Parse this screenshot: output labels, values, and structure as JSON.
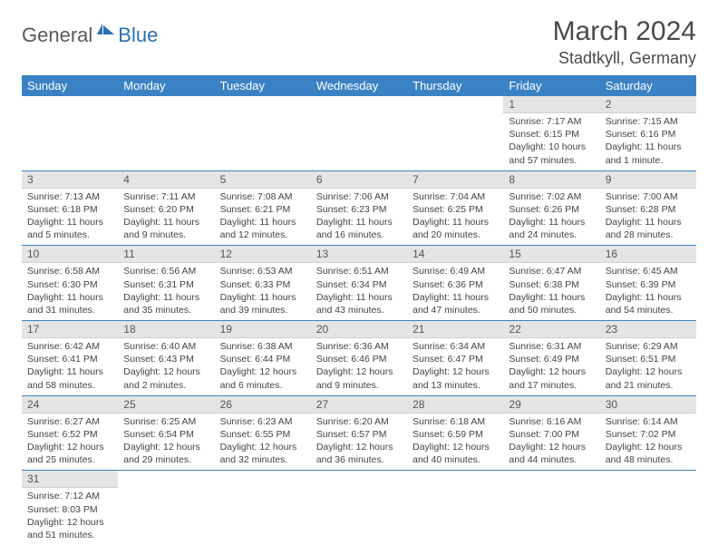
{
  "logo": {
    "general": "General",
    "blue": "Blue"
  },
  "title": "March 2024",
  "location": "Stadtkyll, Germany",
  "colors": {
    "header_bg": "#3b82c4",
    "header_text": "#ffffff",
    "daynum_bg": "#e5e5e5",
    "row_divider": "#3b82c4",
    "logo_general": "#5a5a5a",
    "logo_blue": "#2a6fb5"
  },
  "day_headers": [
    "Sunday",
    "Monday",
    "Tuesday",
    "Wednesday",
    "Thursday",
    "Friday",
    "Saturday"
  ],
  "weeks": [
    [
      {
        "n": "",
        "sr": "",
        "ss": "",
        "dl1": "",
        "dl2": "",
        "empty": true
      },
      {
        "n": "",
        "sr": "",
        "ss": "",
        "dl1": "",
        "dl2": "",
        "empty": true
      },
      {
        "n": "",
        "sr": "",
        "ss": "",
        "dl1": "",
        "dl2": "",
        "empty": true
      },
      {
        "n": "",
        "sr": "",
        "ss": "",
        "dl1": "",
        "dl2": "",
        "empty": true
      },
      {
        "n": "",
        "sr": "",
        "ss": "",
        "dl1": "",
        "dl2": "",
        "empty": true
      },
      {
        "n": "1",
        "sr": "Sunrise: 7:17 AM",
        "ss": "Sunset: 6:15 PM",
        "dl1": "Daylight: 10 hours",
        "dl2": "and 57 minutes."
      },
      {
        "n": "2",
        "sr": "Sunrise: 7:15 AM",
        "ss": "Sunset: 6:16 PM",
        "dl1": "Daylight: 11 hours",
        "dl2": "and 1 minute."
      }
    ],
    [
      {
        "n": "3",
        "sr": "Sunrise: 7:13 AM",
        "ss": "Sunset: 6:18 PM",
        "dl1": "Daylight: 11 hours",
        "dl2": "and 5 minutes."
      },
      {
        "n": "4",
        "sr": "Sunrise: 7:11 AM",
        "ss": "Sunset: 6:20 PM",
        "dl1": "Daylight: 11 hours",
        "dl2": "and 9 minutes."
      },
      {
        "n": "5",
        "sr": "Sunrise: 7:08 AM",
        "ss": "Sunset: 6:21 PM",
        "dl1": "Daylight: 11 hours",
        "dl2": "and 12 minutes."
      },
      {
        "n": "6",
        "sr": "Sunrise: 7:06 AM",
        "ss": "Sunset: 6:23 PM",
        "dl1": "Daylight: 11 hours",
        "dl2": "and 16 minutes."
      },
      {
        "n": "7",
        "sr": "Sunrise: 7:04 AM",
        "ss": "Sunset: 6:25 PM",
        "dl1": "Daylight: 11 hours",
        "dl2": "and 20 minutes."
      },
      {
        "n": "8",
        "sr": "Sunrise: 7:02 AM",
        "ss": "Sunset: 6:26 PM",
        "dl1": "Daylight: 11 hours",
        "dl2": "and 24 minutes."
      },
      {
        "n": "9",
        "sr": "Sunrise: 7:00 AM",
        "ss": "Sunset: 6:28 PM",
        "dl1": "Daylight: 11 hours",
        "dl2": "and 28 minutes."
      }
    ],
    [
      {
        "n": "10",
        "sr": "Sunrise: 6:58 AM",
        "ss": "Sunset: 6:30 PM",
        "dl1": "Daylight: 11 hours",
        "dl2": "and 31 minutes."
      },
      {
        "n": "11",
        "sr": "Sunrise: 6:56 AM",
        "ss": "Sunset: 6:31 PM",
        "dl1": "Daylight: 11 hours",
        "dl2": "and 35 minutes."
      },
      {
        "n": "12",
        "sr": "Sunrise: 6:53 AM",
        "ss": "Sunset: 6:33 PM",
        "dl1": "Daylight: 11 hours",
        "dl2": "and 39 minutes."
      },
      {
        "n": "13",
        "sr": "Sunrise: 6:51 AM",
        "ss": "Sunset: 6:34 PM",
        "dl1": "Daylight: 11 hours",
        "dl2": "and 43 minutes."
      },
      {
        "n": "14",
        "sr": "Sunrise: 6:49 AM",
        "ss": "Sunset: 6:36 PM",
        "dl1": "Daylight: 11 hours",
        "dl2": "and 47 minutes."
      },
      {
        "n": "15",
        "sr": "Sunrise: 6:47 AM",
        "ss": "Sunset: 6:38 PM",
        "dl1": "Daylight: 11 hours",
        "dl2": "and 50 minutes."
      },
      {
        "n": "16",
        "sr": "Sunrise: 6:45 AM",
        "ss": "Sunset: 6:39 PM",
        "dl1": "Daylight: 11 hours",
        "dl2": "and 54 minutes."
      }
    ],
    [
      {
        "n": "17",
        "sr": "Sunrise: 6:42 AM",
        "ss": "Sunset: 6:41 PM",
        "dl1": "Daylight: 11 hours",
        "dl2": "and 58 minutes."
      },
      {
        "n": "18",
        "sr": "Sunrise: 6:40 AM",
        "ss": "Sunset: 6:43 PM",
        "dl1": "Daylight: 12 hours",
        "dl2": "and 2 minutes."
      },
      {
        "n": "19",
        "sr": "Sunrise: 6:38 AM",
        "ss": "Sunset: 6:44 PM",
        "dl1": "Daylight: 12 hours",
        "dl2": "and 6 minutes."
      },
      {
        "n": "20",
        "sr": "Sunrise: 6:36 AM",
        "ss": "Sunset: 6:46 PM",
        "dl1": "Daylight: 12 hours",
        "dl2": "and 9 minutes."
      },
      {
        "n": "21",
        "sr": "Sunrise: 6:34 AM",
        "ss": "Sunset: 6:47 PM",
        "dl1": "Daylight: 12 hours",
        "dl2": "and 13 minutes."
      },
      {
        "n": "22",
        "sr": "Sunrise: 6:31 AM",
        "ss": "Sunset: 6:49 PM",
        "dl1": "Daylight: 12 hours",
        "dl2": "and 17 minutes."
      },
      {
        "n": "23",
        "sr": "Sunrise: 6:29 AM",
        "ss": "Sunset: 6:51 PM",
        "dl1": "Daylight: 12 hours",
        "dl2": "and 21 minutes."
      }
    ],
    [
      {
        "n": "24",
        "sr": "Sunrise: 6:27 AM",
        "ss": "Sunset: 6:52 PM",
        "dl1": "Daylight: 12 hours",
        "dl2": "and 25 minutes."
      },
      {
        "n": "25",
        "sr": "Sunrise: 6:25 AM",
        "ss": "Sunset: 6:54 PM",
        "dl1": "Daylight: 12 hours",
        "dl2": "and 29 minutes."
      },
      {
        "n": "26",
        "sr": "Sunrise: 6:23 AM",
        "ss": "Sunset: 6:55 PM",
        "dl1": "Daylight: 12 hours",
        "dl2": "and 32 minutes."
      },
      {
        "n": "27",
        "sr": "Sunrise: 6:20 AM",
        "ss": "Sunset: 6:57 PM",
        "dl1": "Daylight: 12 hours",
        "dl2": "and 36 minutes."
      },
      {
        "n": "28",
        "sr": "Sunrise: 6:18 AM",
        "ss": "Sunset: 6:59 PM",
        "dl1": "Daylight: 12 hours",
        "dl2": "and 40 minutes."
      },
      {
        "n": "29",
        "sr": "Sunrise: 6:16 AM",
        "ss": "Sunset: 7:00 PM",
        "dl1": "Daylight: 12 hours",
        "dl2": "and 44 minutes."
      },
      {
        "n": "30",
        "sr": "Sunrise: 6:14 AM",
        "ss": "Sunset: 7:02 PM",
        "dl1": "Daylight: 12 hours",
        "dl2": "and 48 minutes."
      }
    ],
    [
      {
        "n": "31",
        "sr": "Sunrise: 7:12 AM",
        "ss": "Sunset: 8:03 PM",
        "dl1": "Daylight: 12 hours",
        "dl2": "and 51 minutes."
      },
      {
        "n": "",
        "sr": "",
        "ss": "",
        "dl1": "",
        "dl2": "",
        "empty": true
      },
      {
        "n": "",
        "sr": "",
        "ss": "",
        "dl1": "",
        "dl2": "",
        "empty": true
      },
      {
        "n": "",
        "sr": "",
        "ss": "",
        "dl1": "",
        "dl2": "",
        "empty": true
      },
      {
        "n": "",
        "sr": "",
        "ss": "",
        "dl1": "",
        "dl2": "",
        "empty": true
      },
      {
        "n": "",
        "sr": "",
        "ss": "",
        "dl1": "",
        "dl2": "",
        "empty": true
      },
      {
        "n": "",
        "sr": "",
        "ss": "",
        "dl1": "",
        "dl2": "",
        "empty": true
      }
    ]
  ]
}
